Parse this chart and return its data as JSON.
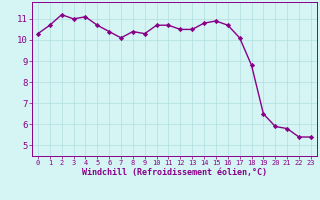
{
  "x": [
    0,
    1,
    2,
    3,
    4,
    5,
    6,
    7,
    8,
    9,
    10,
    11,
    12,
    13,
    14,
    15,
    16,
    17,
    18,
    19,
    20,
    21,
    22,
    23
  ],
  "y": [
    10.3,
    10.7,
    11.2,
    11.0,
    11.1,
    10.7,
    10.4,
    10.1,
    10.4,
    10.3,
    10.7,
    10.7,
    10.5,
    10.5,
    10.8,
    10.9,
    10.7,
    10.1,
    8.8,
    6.5,
    5.9,
    5.8,
    5.4,
    5.4
  ],
  "line_color": "#880088",
  "marker": "D",
  "marker_size": 2.2,
  "linewidth": 1.0,
  "xlabel": "Windchill (Refroidissement éolien,°C)",
  "xlim": [
    -0.5,
    23.5
  ],
  "ylim": [
    4.5,
    11.8
  ],
  "yticks": [
    5,
    6,
    7,
    8,
    9,
    10,
    11
  ],
  "xticks": [
    0,
    1,
    2,
    3,
    4,
    5,
    6,
    7,
    8,
    9,
    10,
    11,
    12,
    13,
    14,
    15,
    16,
    17,
    18,
    19,
    20,
    21,
    22,
    23
  ],
  "bg_color": "#d5f5f5",
  "grid_color": "#b0dede",
  "tick_color": "#880088",
  "label_color": "#880088",
  "spine_color": "#880088",
  "xlabel_fontsize": 6.0,
  "ytick_fontsize": 6.5,
  "xtick_fontsize": 5.0
}
